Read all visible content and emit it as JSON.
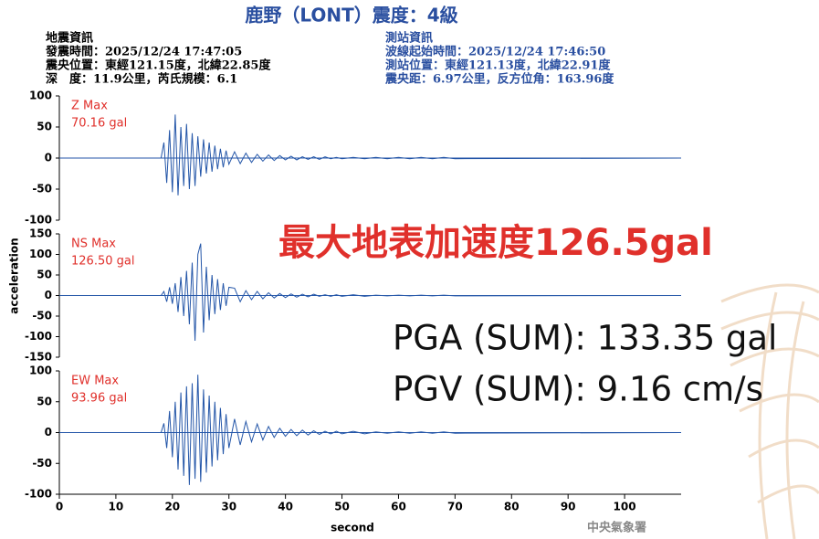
{
  "header": {
    "title": "鹿野（LONT）震度：4級",
    "left": [
      "地震資訊",
      "發震時間：2025/12/24 17:47:05",
      "震央位置：東經121.15度，北緯22.85度",
      "深　度：11.9公里，芮氏規模：6.1"
    ],
    "right": [
      "測站資訊",
      "波線起始時間：2025/12/24 17:46:50",
      "測站位置：東經121.13度，北緯22.91度",
      "震央距：6.97公里，反方位角：163.96度"
    ]
  },
  "y_label": "acceleration",
  "overlay": {
    "pga_max": "最大地表加速度126.5gal",
    "pga_sum": "PGA (SUM): 133.35 gal",
    "pgv_sum": "PGV (SUM): 9.16 cm/s",
    "agency": "中央氣象署"
  },
  "chart_data": [
    {
      "type": "line",
      "label": "Z Max",
      "max_text": "70.16 gal",
      "xlim": [
        0,
        110
      ],
      "ylim": [
        -100,
        100
      ],
      "yticks": [
        -100,
        -50,
        0,
        50,
        100
      ],
      "x": [
        0,
        18,
        18.5,
        19,
        19.5,
        20,
        20.5,
        21,
        21.5,
        22,
        22.5,
        23,
        23.5,
        24,
        24.5,
        25,
        25.5,
        26,
        26.5,
        27,
        27.5,
        28,
        28.5,
        29,
        29.5,
        30,
        31,
        32,
        33,
        34,
        35,
        36,
        37,
        38,
        39,
        40,
        41,
        42,
        43,
        44,
        45,
        46,
        47,
        48,
        49,
        50,
        52,
        54,
        56,
        58,
        60,
        62,
        64,
        66,
        68,
        70,
        110
      ],
      "series": [
        {
          "color": "#2456a8",
          "values": [
            0,
            0,
            25,
            -40,
            45,
            -55,
            70,
            -60,
            50,
            -45,
            55,
            -50,
            40,
            -45,
            35,
            -30,
            30,
            -25,
            25,
            -22,
            20,
            -18,
            15,
            -15,
            12,
            -10,
            10,
            -9,
            8,
            -7,
            6,
            -5,
            5,
            -4,
            4,
            -3,
            3,
            -3,
            2,
            -2,
            2,
            -2,
            2,
            -1,
            1,
            -1,
            1,
            -1,
            1,
            -1,
            1,
            -1,
            1,
            -1,
            1,
            -1,
            0
          ]
        }
      ]
    },
    {
      "type": "line",
      "label": "NS Max",
      "max_text": "126.50 gal",
      "xlim": [
        0,
        110
      ],
      "ylim": [
        -150,
        150
      ],
      "yticks": [
        -150,
        -100,
        -50,
        0,
        50,
        100,
        150
      ],
      "x": [
        0,
        18,
        18.5,
        19,
        19.5,
        20,
        20.5,
        21,
        21.5,
        22,
        22.5,
        23,
        23.5,
        24,
        24.5,
        25,
        25.5,
        26,
        26.5,
        27,
        27.5,
        28,
        28.5,
        29,
        29.5,
        30,
        31,
        32,
        33,
        34,
        35,
        36,
        37,
        38,
        39,
        40,
        41,
        42,
        43,
        44,
        45,
        46,
        47,
        48,
        49,
        50,
        52,
        54,
        56,
        58,
        60,
        62,
        64,
        66,
        68,
        70,
        110
      ],
      "series": [
        {
          "color": "#2456a8",
          "values": [
            0,
            0,
            10,
            -15,
            20,
            -20,
            30,
            -40,
            45,
            -50,
            60,
            -70,
            80,
            -110,
            100,
            126.5,
            -90,
            70,
            -60,
            50,
            -45,
            40,
            -35,
            30,
            -25,
            20,
            18,
            -15,
            12,
            -10,
            10,
            -8,
            7,
            -6,
            5,
            -5,
            4,
            -4,
            3,
            -3,
            3,
            -2,
            2,
            -2,
            2,
            -2,
            2,
            -2,
            1,
            -1,
            1,
            -1,
            1,
            -1,
            1,
            -1,
            0
          ]
        }
      ]
    },
    {
      "type": "line",
      "label": "EW Max",
      "max_text": "93.96 gal",
      "xlim": [
        0,
        110
      ],
      "ylim": [
        -100,
        100
      ],
      "yticks": [
        -100,
        -50,
        0,
        50,
        100
      ],
      "xticks": [
        0,
        10,
        20,
        30,
        40,
        50,
        60,
        70,
        80,
        90,
        100
      ],
      "x_label": "second",
      "x": [
        0,
        18,
        18.5,
        19,
        19.5,
        20,
        20.5,
        21,
        21.5,
        22,
        22.5,
        23,
        23.5,
        24,
        24.5,
        25,
        25.5,
        26,
        26.5,
        27,
        27.5,
        28,
        28.5,
        29,
        29.5,
        30,
        31,
        32,
        33,
        34,
        35,
        36,
        37,
        38,
        39,
        40,
        41,
        42,
        43,
        44,
        45,
        46,
        47,
        48,
        49,
        50,
        52,
        54,
        56,
        58,
        60,
        62,
        64,
        66,
        68,
        70,
        110
      ],
      "series": [
        {
          "color": "#2456a8",
          "values": [
            0,
            0,
            15,
            -25,
            35,
            -40,
            50,
            -60,
            65,
            -70,
            75,
            -85,
            80,
            -75,
            93.96,
            -80,
            70,
            -65,
            60,
            -55,
            50,
            -45,
            40,
            -35,
            30,
            -25,
            22,
            -20,
            18,
            -15,
            14,
            -12,
            10,
            -8,
            7,
            -6,
            5,
            -5,
            4,
            -4,
            3,
            -3,
            2,
            -2,
            2,
            -2,
            2,
            -2,
            1,
            -1,
            1,
            -1,
            1,
            -1,
            1,
            -1,
            0
          ]
        }
      ]
    }
  ]
}
